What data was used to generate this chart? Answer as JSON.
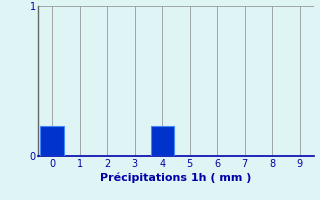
{
  "x_values": [
    0,
    1,
    2,
    3,
    4,
    5,
    6,
    7,
    8,
    9
  ],
  "bar_heights": [
    0.2,
    0.0,
    0.0,
    0.0,
    0.2,
    0.0,
    0.0,
    0.0,
    0.0,
    0.0
  ],
  "bar_color": "#0033cc",
  "bar_edge_color": "#4488ff",
  "background_color": "#dff4f4",
  "grid_color": "#999999",
  "xlabel": "Précipitations 1h ( mm )",
  "xlabel_color": "#0000aa",
  "tick_color": "#0000aa",
  "label_fontsize": 7,
  "xlabel_fontsize": 8,
  "ylim": [
    0,
    1
  ],
  "xlim": [
    -0.5,
    9.5
  ],
  "yticks": [
    0,
    1
  ],
  "xticks": [
    0,
    1,
    2,
    3,
    4,
    5,
    6,
    7,
    8,
    9
  ],
  "bar_width": 0.85,
  "left_spine_color": "#666666",
  "bottom_spine_color": "#0000aa"
}
